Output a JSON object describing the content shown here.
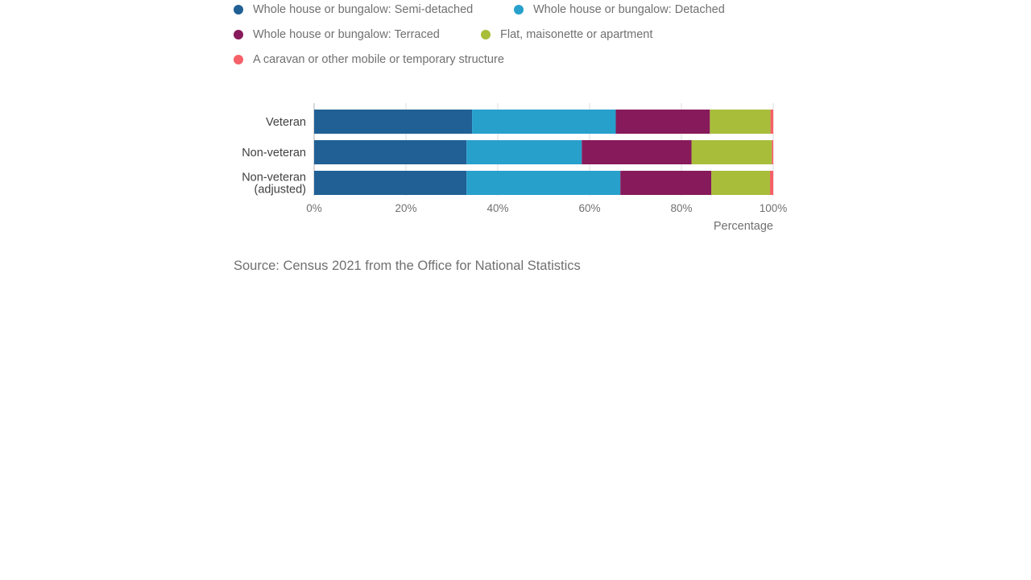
{
  "chart_data": {
    "type": "bar",
    "orientation": "horizontal",
    "stacked": true,
    "categories": [
      "Veteran",
      "Non-veteran",
      "Non-veteran (adjusted)"
    ],
    "category_lines": [
      [
        "Veteran"
      ],
      [
        "Non-veteran"
      ],
      [
        "Non-veteran",
        "(adjusted)"
      ]
    ],
    "series": [
      {
        "name": "Whole house or bungalow: Semi-detached",
        "color": "#206095",
        "values": [
          34.4,
          33.2,
          33.2
        ]
      },
      {
        "name": "Whole house or bungalow: Detached",
        "color": "#27a0cc",
        "values": [
          31.3,
          25.1,
          33.5
        ]
      },
      {
        "name": "Whole house or bungalow: Terraced",
        "color": "#871a5b",
        "values": [
          20.5,
          23.9,
          19.8
        ]
      },
      {
        "name": "Flat, maisonette or apartment",
        "color": "#a8bd3a",
        "values": [
          13.2,
          17.5,
          12.8
        ]
      },
      {
        "name": "A caravan or other mobile or temporary structure",
        "color": "#f66068",
        "values": [
          0.6,
          0.3,
          0.7
        ]
      }
    ],
    "xlabel": "Percentage",
    "ylabel": "",
    "xlim": [
      0,
      100
    ],
    "xticks": [
      0,
      20,
      40,
      60,
      80,
      100
    ],
    "xtick_labels": [
      "0%",
      "20%",
      "40%",
      "60%",
      "80%",
      "100%"
    ],
    "grid": true,
    "legend_position": "top"
  },
  "source_text": "Source: Census 2021 from the Office for National Statistics"
}
